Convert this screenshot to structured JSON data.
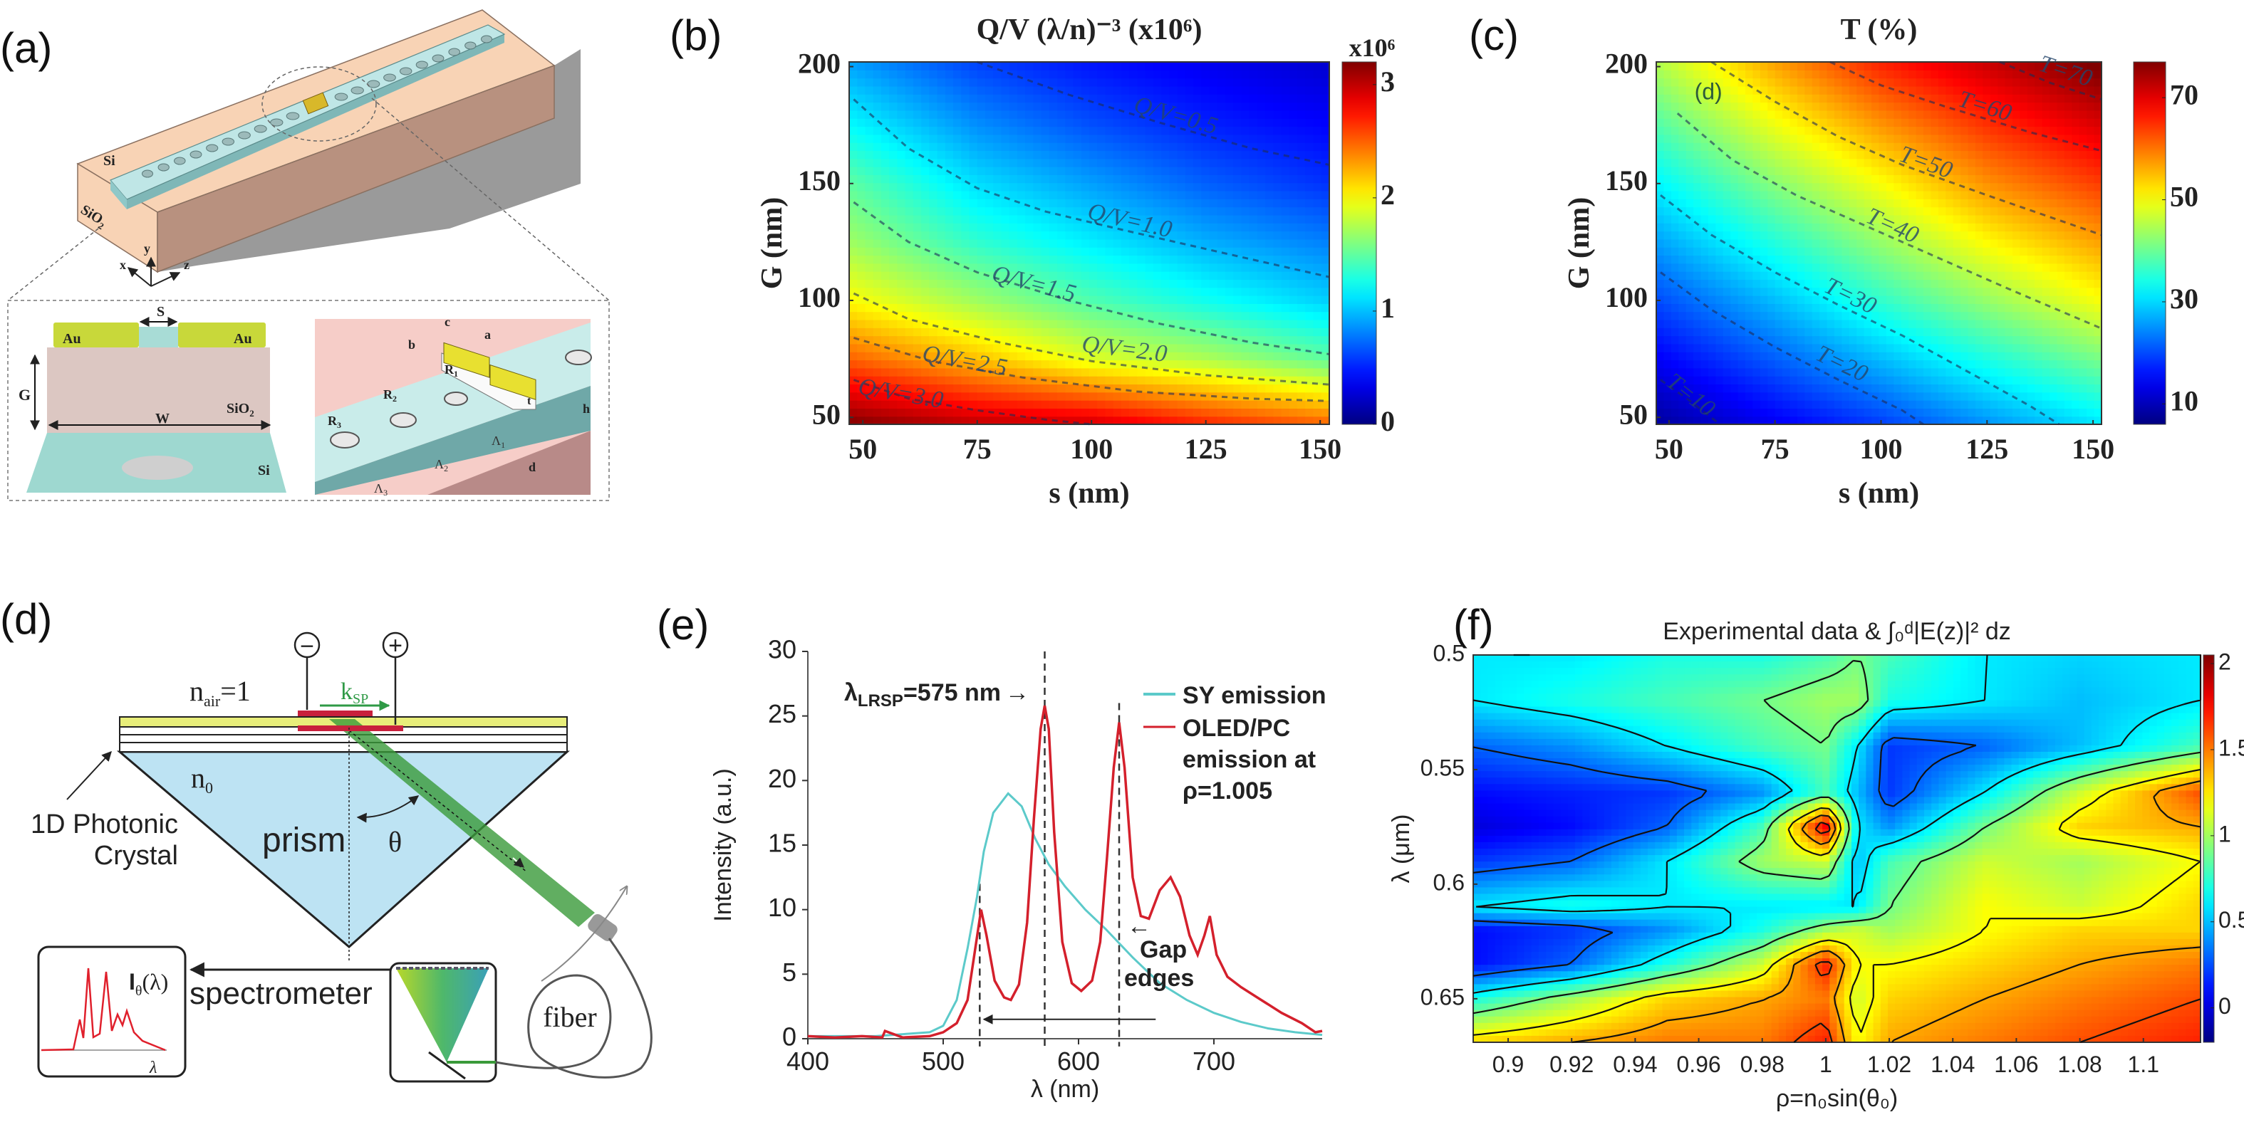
{
  "panel_labels": {
    "a": "(a)",
    "b": "(b)",
    "c": "(c)",
    "d": "(d)",
    "e": "(e)",
    "f": "(f)"
  },
  "panel_a": {
    "si_label": "Si",
    "sio2_label": "SiO",
    "sio2_sub": "2",
    "axes": {
      "x": "x",
      "y": "y",
      "z": "z"
    },
    "cross_section": {
      "au_left": "Au",
      "au_right": "Au",
      "s": "S",
      "g": "G",
      "w": "W",
      "sio2": "SiO",
      "sio2_sub": "2",
      "si": "Si"
    },
    "detail": {
      "a": "a",
      "b": "b",
      "c": "c",
      "t": "t",
      "h": "h",
      "d": "d",
      "r1": "R",
      "r1_sub": "1",
      "r2": "R",
      "r2_sub": "2",
      "r3": "R",
      "r3_sub": "3",
      "l1": "Λ",
      "l1_sub": "1",
      "l2": "Λ",
      "l2_sub": "2",
      "l3": "Λ",
      "l3_sub": "3"
    },
    "colors": {
      "sio2_top": "#f8d3b5",
      "sio2_side": "#b8917f",
      "si": "#bfe6e6",
      "au": "#c8d83a",
      "shadow": "#9a9a9a"
    }
  },
  "panel_d": {
    "minus": "−",
    "plus": "+",
    "n_air": "n",
    "n_air_sub": "air",
    "n_air_val": "=1",
    "k_sp": "k",
    "k_sp_sub": "SP",
    "n0": "n",
    "n0_sub": "0",
    "photonic_line1": "1D Photonic",
    "photonic_line2": "Crystal",
    "prism": "prism",
    "theta": "θ",
    "spectrometer": "spectrometer",
    "spectrum_label": "I",
    "spectrum_label_sub": "θ",
    "spectrum_label_tail": "(λ)",
    "spectrum_axis": "λ",
    "fiber": "fiber",
    "colors": {
      "prism": "#bde3f3",
      "beam": "#3a9a3a",
      "layer": "#e8ee7a",
      "electrode": "#c8203c"
    }
  },
  "chart_data": [
    {
      "panel": "b",
      "type": "heatmap",
      "title": "Q/V (λ/n)⁻³ (x10⁶)",
      "xlabel": "s (nm)",
      "ylabel": "G (nm)",
      "xlim": [
        47,
        152
      ],
      "ylim": [
        47,
        202
      ],
      "xticks": [
        50,
        75,
        100,
        125,
        150
      ],
      "yticks": [
        50,
        100,
        150,
        200
      ],
      "colormap": "jet",
      "clim": [
        0,
        3.2
      ],
      "colorbar_ticks": [
        0,
        1,
        2,
        3
      ],
      "colorbar_label": "x10⁶",
      "grid": {
        "x": [
          47,
          75,
          100,
          125,
          152
        ],
        "y": [
          47,
          75,
          100,
          125,
          150,
          175,
          202
        ],
        "z": [
          [
            3.2,
            3.0,
            2.95,
            2.7,
            2.5
          ],
          [
            2.5,
            2.2,
            1.9,
            1.75,
            1.5
          ],
          [
            2.0,
            1.7,
            1.45,
            1.25,
            1.05
          ],
          [
            1.7,
            1.35,
            1.15,
            0.95,
            0.8
          ],
          [
            1.5,
            1.1,
            0.9,
            0.7,
            0.55
          ],
          [
            1.2,
            0.85,
            0.65,
            0.5,
            0.4
          ],
          [
            0.9,
            0.6,
            0.45,
            0.35,
            0.25
          ]
        ]
      },
      "contours": [
        {
          "level": 0.5,
          "label": "Q/V=0.5",
          "label_at": [
            118,
            176
          ],
          "points": [
            [
              75,
              202
            ],
            [
              95,
              188
            ],
            [
              115,
              176
            ],
            [
              135,
              165
            ],
            [
              152,
              158
            ]
          ]
        },
        {
          "level": 1.0,
          "label": "Q/V=1.0",
          "label_at": [
            108,
            131
          ],
          "points": [
            [
              48,
              186
            ],
            [
              60,
              165
            ],
            [
              75,
              148
            ],
            [
              90,
              138
            ],
            [
              105,
              131
            ],
            [
              125,
              122
            ],
            [
              152,
              110
            ]
          ]
        },
        {
          "level": 1.5,
          "label": "Q/V=1.5",
          "label_at": [
            87,
            104
          ],
          "points": [
            [
              48,
              142
            ],
            [
              60,
              125
            ],
            [
              75,
              112
            ],
            [
              95,
              100
            ],
            [
              115,
              90
            ],
            [
              135,
              82
            ],
            [
              152,
              77
            ]
          ]
        },
        {
          "level": 2.0,
          "label": "Q/V=2.0",
          "label_at": [
            107,
            76
          ],
          "points": [
            [
              48,
              103
            ],
            [
              60,
              92
            ],
            [
              80,
              82
            ],
            [
              100,
              74
            ],
            [
              125,
              68
            ],
            [
              152,
              64
            ]
          ]
        },
        {
          "level": 2.5,
          "label": "Q/V=2.5",
          "label_at": [
            72,
            71
          ],
          "points": [
            [
              48,
              84
            ],
            [
              65,
              74
            ],
            [
              85,
              67
            ],
            [
              110,
              61
            ],
            [
              135,
              58
            ],
            [
              152,
              57
            ]
          ]
        },
        {
          "level": 3.0,
          "label": "Q/V=3.0",
          "label_at": [
            58,
            57
          ],
          "points": [
            [
              48,
              66
            ],
            [
              60,
              58
            ],
            [
              75,
              53
            ],
            [
              90,
              49
            ],
            [
              100,
              47
            ]
          ]
        }
      ]
    },
    {
      "panel": "c",
      "type": "heatmap",
      "title": "T (%)",
      "xlabel": "s (nm)",
      "ylabel": "G (nm)",
      "xlim": [
        47,
        152
      ],
      "ylim": [
        47,
        202
      ],
      "xticks": [
        50,
        75,
        100,
        125,
        150
      ],
      "yticks": [
        50,
        100,
        150,
        200
      ],
      "colormap": "jet",
      "clim": [
        6,
        77
      ],
      "colorbar_ticks": [
        10,
        30,
        50,
        70
      ],
      "annotation": "(d)",
      "annotation_at": [
        56,
        186
      ],
      "grid": {
        "x": [
          47,
          75,
          100,
          125,
          152
        ],
        "y": [
          47,
          100,
          150,
          202
        ],
        "z": [
          [
            8,
            14,
            19,
            25,
            31
          ],
          [
            20,
            28,
            36,
            43,
            50
          ],
          [
            32,
            42,
            50,
            58,
            64
          ],
          [
            45,
            57,
            66,
            72,
            78
          ]
        ]
      },
      "contours": [
        {
          "level": 10,
          "label": "T=10",
          "label_at": [
            54,
            57
          ],
          "points": [
            [
              48,
              66
            ],
            [
              55,
              57
            ],
            [
              62,
              47
            ]
          ]
        },
        {
          "level": 20,
          "label": "T=20",
          "label_at": [
            90,
            70
          ],
          "points": [
            [
              48,
              112
            ],
            [
              60,
              96
            ],
            [
              75,
              80
            ],
            [
              90,
              66
            ],
            [
              105,
              53
            ],
            [
              110,
              47
            ]
          ]
        },
        {
          "level": 30,
          "label": "T=30",
          "label_at": [
            92,
            99
          ],
          "points": [
            [
              48,
              145
            ],
            [
              60,
              128
            ],
            [
              75,
              112
            ],
            [
              90,
              98
            ],
            [
              105,
              85
            ],
            [
              120,
              70
            ],
            [
              135,
              55
            ],
            [
              142,
              47
            ]
          ]
        },
        {
          "level": 40,
          "label": "T=40",
          "label_at": [
            102,
            129
          ],
          "points": [
            [
              52,
              180
            ],
            [
              65,
              160
            ],
            [
              80,
              145
            ],
            [
              95,
              133
            ],
            [
              110,
              121
            ],
            [
              130,
              105
            ],
            [
              152,
              88
            ]
          ]
        },
        {
          "level": 50,
          "label": "T=50",
          "label_at": [
            110,
            156
          ],
          "points": [
            [
              60,
              202
            ],
            [
              75,
              185
            ],
            [
              90,
              170
            ],
            [
              105,
              158
            ],
            [
              125,
              145
            ],
            [
              152,
              128
            ]
          ]
        },
        {
          "level": 60,
          "label": "T=60",
          "label_at": [
            124,
            180
          ],
          "points": [
            [
              88,
              202
            ],
            [
              100,
              192
            ],
            [
              115,
              183
            ],
            [
              135,
              172
            ],
            [
              152,
              164
            ]
          ]
        },
        {
          "level": 70,
          "label": "T=70",
          "label_at": [
            143,
            195
          ],
          "points": [
            [
              128,
              202
            ],
            [
              140,
              193
            ],
            [
              152,
              186
            ]
          ]
        }
      ]
    },
    {
      "panel": "e",
      "type": "line",
      "xlabel": "λ (nm)",
      "ylabel": "Intensity (a.u.)",
      "xlim": [
        400,
        780
      ],
      "ylim": [
        0,
        30
      ],
      "xticks": [
        400,
        500,
        600,
        700
      ],
      "yticks": [
        0,
        5,
        10,
        15,
        20,
        25,
        30
      ],
      "legend_position": "top-right",
      "series": [
        {
          "name": "SY emission",
          "color": "#5ccaca",
          "x": [
            400,
            450,
            490,
            500,
            510,
            518,
            525,
            530,
            537,
            548,
            558,
            568,
            578,
            590,
            605,
            620,
            640,
            660,
            680,
            700,
            720,
            740,
            760,
            780
          ],
          "y": [
            0.2,
            0.2,
            0.5,
            1.0,
            3.0,
            7.0,
            11.0,
            14.5,
            17.5,
            19.0,
            18.0,
            15.5,
            13.5,
            11.8,
            10.0,
            8.5,
            6.3,
            4.3,
            3.0,
            2.0,
            1.3,
            0.8,
            0.5,
            0.3
          ]
        },
        {
          "name_lines": [
            "OLED/PC",
            "emission at",
            "ρ=1.005"
          ],
          "color": "#d4202c",
          "x": [
            400,
            420,
            440,
            455,
            457,
            470,
            490,
            500,
            510,
            518,
            523,
            528,
            532,
            538,
            545,
            550,
            556,
            562,
            567,
            572,
            575,
            578,
            582,
            588,
            595,
            602,
            610,
            616,
            621,
            626,
            630,
            634,
            640,
            646,
            652,
            660,
            668,
            675,
            682,
            688,
            693,
            697,
            702,
            710,
            720,
            735,
            750,
            765,
            775,
            780
          ],
          "y": [
            0.2,
            0.1,
            0.2,
            0.1,
            0.6,
            0.1,
            0.2,
            0.5,
            1.2,
            3.0,
            6.5,
            10.0,
            8.0,
            4.5,
            3.2,
            3.0,
            4.2,
            9.0,
            17.0,
            24.0,
            25.8,
            24.0,
            16.0,
            7.5,
            4.3,
            3.7,
            4.5,
            7.5,
            14.0,
            21.0,
            24.5,
            21.0,
            12.5,
            9.5,
            9.3,
            11.5,
            12.5,
            11.0,
            8.0,
            6.5,
            8.0,
            9.5,
            6.5,
            4.8,
            4.0,
            3.0,
            2.0,
            1.2,
            0.5,
            0.6
          ]
        }
      ],
      "markers": {
        "dashed_vlines": [
          {
            "x": 527,
            "y_top": 12
          },
          {
            "x": 575,
            "y_top": 30
          },
          {
            "x": 630,
            "y_top": 26
          }
        ],
        "span_arrow": {
          "from": 657,
          "to": 530,
          "y": 1.5
        }
      },
      "annotations": {
        "lrsp": {
          "main": "λ",
          "sub": "LRSP",
          "tail": "=575 nm",
          "arrow": "→"
        },
        "gap": {
          "arrow": "←",
          "line1": "Gap",
          "line2": "edges"
        }
      }
    },
    {
      "panel": "f",
      "type": "heatmap",
      "title": "Experimental data  & ∫₀ᵈ|E(z)|² dz",
      "xlabel": "ρ=n₀sin(θ₀)",
      "ylabel": "λ (μm)",
      "xlim": [
        0.889,
        1.118
      ],
      "ylim": [
        0.5,
        0.669
      ],
      "y_reversed": true,
      "xticks": [
        0.9,
        0.92,
        0.94,
        0.96,
        0.98,
        1,
        1.02,
        1.04,
        1.06,
        1.08,
        1.1
      ],
      "yticks": [
        0.5,
        0.55,
        0.6,
        0.65
      ],
      "colormap": "jet",
      "clim": [
        -0.2,
        2.05
      ],
      "colorbar_ticks": [
        0,
        0.5,
        1,
        1.5,
        2
      ],
      "contour_levels": [
        0.3,
        0.6,
        0.9,
        1.2,
        1.4,
        1.6,
        1.8
      ],
      "grid": {
        "x": [
          0.889,
          0.92,
          0.95,
          0.98,
          1.0,
          1.01,
          1.02,
          1.05,
          1.08,
          1.118
        ],
        "y": [
          0.5,
          0.52,
          0.54,
          0.56,
          0.575,
          0.59,
          0.61,
          0.62,
          0.635,
          0.65,
          0.669
        ],
        "z": [
          [
            0.6,
            0.6,
            0.7,
            0.7,
            0.8,
            0.9,
            0.8,
            0.6,
            0.55,
            0.6
          ],
          [
            0.6,
            0.7,
            0.8,
            0.9,
            1.0,
            1.0,
            0.7,
            0.6,
            0.5,
            0.6
          ],
          [
            0.3,
            0.4,
            0.6,
            0.8,
            0.9,
            0.6,
            0.2,
            0.3,
            0.5,
            0.8
          ],
          [
            0.1,
            0.15,
            0.2,
            0.4,
            0.8,
            0.5,
            0.2,
            0.6,
            1.1,
            1.6
          ],
          [
            0.0,
            0.1,
            0.3,
            0.8,
            1.8,
            0.6,
            0.4,
            0.9,
            1.3,
            1.4
          ],
          [
            0.2,
            0.3,
            0.6,
            1.0,
            1.1,
            0.5,
            0.8,
            1.1,
            1.0,
            1.2
          ],
          [
            0.6,
            0.7,
            0.6,
            0.6,
            0.6,
            0.6,
            0.9,
            1.2,
            1.1,
            1.3
          ],
          [
            0.1,
            0.2,
            0.4,
            0.7,
            1.0,
            1.1,
            1.0,
            1.2,
            1.3,
            1.3
          ],
          [
            0.1,
            0.3,
            0.7,
            1.1,
            1.7,
            1.2,
            1.2,
            1.3,
            1.4,
            1.5
          ],
          [
            0.7,
            1.0,
            1.3,
            1.4,
            1.5,
            1.1,
            1.3,
            1.4,
            1.5,
            1.6
          ],
          [
            1.3,
            1.4,
            1.5,
            1.5,
            1.7,
            1.2,
            1.4,
            1.5,
            1.6,
            1.7
          ]
        ]
      }
    }
  ]
}
